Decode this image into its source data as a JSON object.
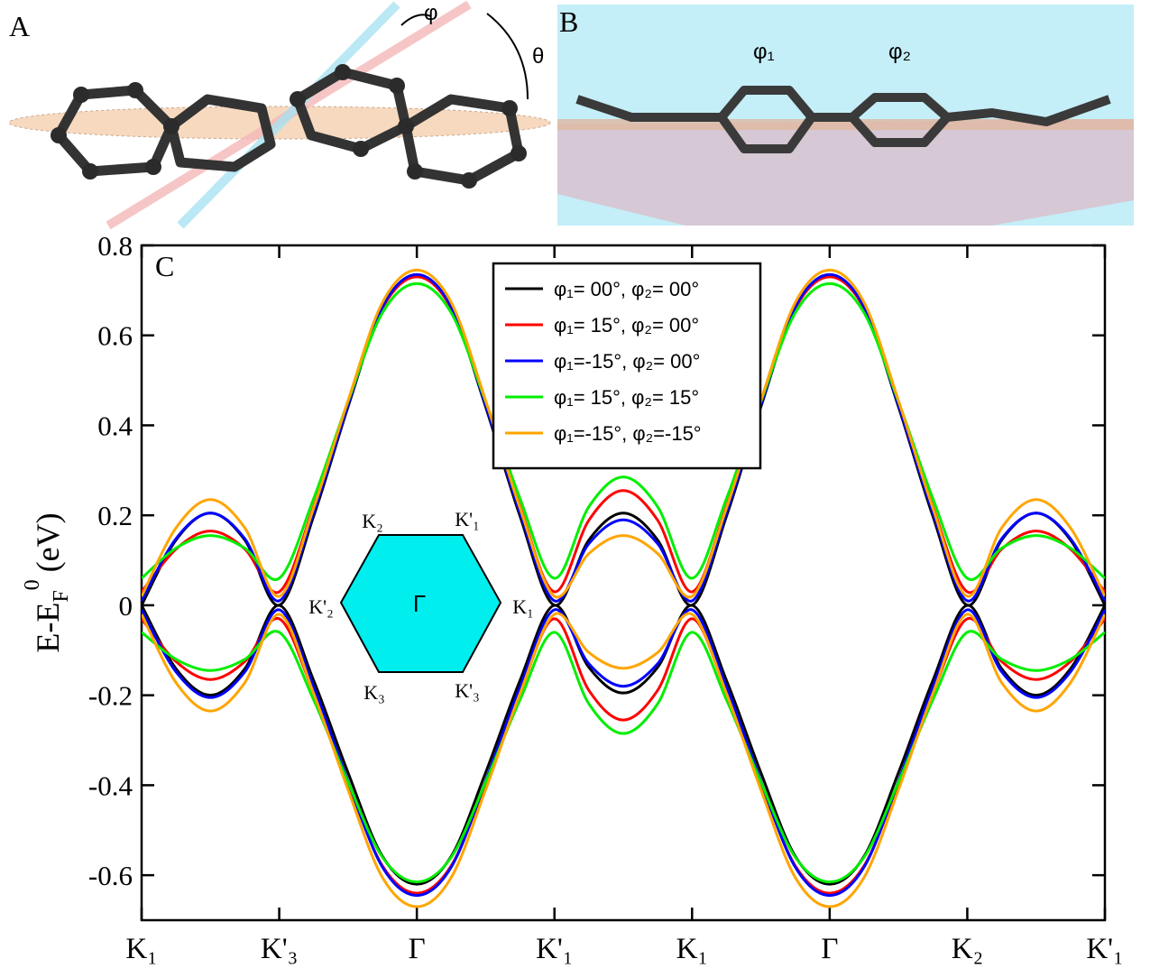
{
  "panels": {
    "a_label": "A",
    "phi": "φ",
    "theta": "θ",
    "b_label": "B",
    "phi1": "φ₁",
    "phi2": "φ₂"
  },
  "chart_data": {
    "type": "line",
    "panel_label": "C",
    "ylabel": {
      "main": "E-E",
      "sub": "F",
      "sup": "0",
      "unit": "(eV)"
    },
    "x": [
      0,
      0.25,
      0.5,
      0.75,
      1,
      1.25,
      1.5,
      1.75,
      2,
      2.25,
      2.5,
      2.75,
      3,
      3.25,
      3.5,
      3.75,
      4,
      4.25,
      4.5,
      4.75,
      5,
      5.25,
      5.5,
      5.75,
      6,
      6.25,
      6.5,
      6.75,
      7
    ],
    "xlim": [
      0,
      7
    ],
    "xticks": [
      {
        "value": 0,
        "label": "K₁"
      },
      {
        "value": 1,
        "label": "K'₃"
      },
      {
        "value": 2,
        "label": "Γ"
      },
      {
        "value": 3,
        "label": "K'₁"
      },
      {
        "value": 4,
        "label": "K₁"
      },
      {
        "value": 5,
        "label": "Γ"
      },
      {
        "value": 6,
        "label": "K₂"
      },
      {
        "value": 7,
        "label": "K'₁"
      }
    ],
    "ylim": [
      -0.7,
      0.8
    ],
    "yticks": [
      -0.6,
      -0.4,
      -0.2,
      0,
      0.2,
      0.4,
      0.6,
      0.8
    ],
    "series": [
      {
        "name": "φ₁= 00°, φ₂= 00°",
        "color": "#000000",
        "values": [
          0,
          0.145,
          0.205,
          0.145,
          0,
          0.198,
          0.441,
          0.662,
          0.735,
          0.662,
          0.441,
          0.198,
          0,
          0.145,
          0.205,
          0.145,
          0,
          0.198,
          0.441,
          0.662,
          0.735,
          0.662,
          0.441,
          0.198,
          0,
          0.145,
          0.205,
          0.145,
          0
        ],
        "lower_values": [
          0,
          -0.141,
          -0.2,
          -0.141,
          0,
          -0.167,
          -0.372,
          -0.558,
          -0.62,
          -0.558,
          -0.372,
          -0.167,
          0,
          -0.138,
          -0.195,
          -0.138,
          0,
          -0.167,
          -0.372,
          -0.558,
          -0.62,
          -0.558,
          -0.372,
          -0.167,
          0,
          -0.141,
          -0.2,
          -0.141,
          0
        ]
      },
      {
        "name": "φ₁= 15°, φ₂= 00°",
        "color": "#ff0000",
        "values": [
          0.03,
          0.125,
          0.165,
          0.125,
          0.03,
          0.219,
          0.45,
          0.66,
          0.73,
          0.66,
          0.45,
          0.219,
          0.03,
          0.189,
          0.255,
          0.189,
          0.03,
          0.219,
          0.45,
          0.66,
          0.73,
          0.66,
          0.45,
          0.219,
          0.03,
          0.125,
          0.165,
          0.125,
          0.03
        ],
        "lower_values": [
          -0.03,
          -0.125,
          -0.165,
          -0.125,
          -0.03,
          -0.195,
          -0.396,
          -0.579,
          -0.64,
          -0.579,
          -0.396,
          -0.195,
          -0.03,
          -0.189,
          -0.255,
          -0.189,
          -0.03,
          -0.195,
          -0.396,
          -0.579,
          -0.64,
          -0.579,
          -0.396,
          -0.195,
          -0.03,
          -0.125,
          -0.165,
          -0.125,
          -0.03
        ]
      },
      {
        "name": "φ₁=-15°, φ₂= 00°",
        "color": "#0000ff",
        "values": [
          0.01,
          0.148,
          0.205,
          0.148,
          0.01,
          0.206,
          0.445,
          0.663,
          0.735,
          0.663,
          0.445,
          0.206,
          0.01,
          0.137,
          0.19,
          0.137,
          0.01,
          0.206,
          0.445,
          0.663,
          0.735,
          0.663,
          0.445,
          0.206,
          0.01,
          0.148,
          0.205,
          0.148,
          0.01
        ],
        "lower_values": [
          -0.01,
          -0.148,
          -0.205,
          -0.148,
          -0.01,
          -0.181,
          -0.391,
          -0.582,
          -0.645,
          -0.582,
          -0.391,
          -0.181,
          -0.01,
          -0.13,
          -0.18,
          -0.13,
          -0.01,
          -0.181,
          -0.391,
          -0.582,
          -0.645,
          -0.582,
          -0.391,
          -0.181,
          -0.01,
          -0.148,
          -0.205,
          -0.148,
          -0.01
        ]
      },
      {
        "name": "φ₁= 15°, φ₂= 15°",
        "color": "#00ee00",
        "values": [
          0.06,
          0.127,
          0.155,
          0.127,
          0.06,
          0.237,
          0.453,
          0.65,
          0.715,
          0.65,
          0.453,
          0.237,
          0.06,
          0.219,
          0.285,
          0.219,
          0.06,
          0.237,
          0.453,
          0.65,
          0.715,
          0.65,
          0.453,
          0.237,
          0.06,
          0.127,
          0.155,
          0.127,
          0.06
        ],
        "lower_values": [
          -0.06,
          -0.12,
          -0.145,
          -0.12,
          -0.06,
          -0.21,
          -0.393,
          -0.56,
          -0.615,
          -0.56,
          -0.393,
          -0.21,
          -0.06,
          -0.219,
          -0.285,
          -0.219,
          -0.06,
          -0.21,
          -0.393,
          -0.56,
          -0.615,
          -0.56,
          -0.393,
          -0.21,
          -0.06,
          -0.12,
          -0.145,
          -0.12,
          -0.06
        ]
      },
      {
        "name": "φ₁=-15°, φ₂=-15°",
        "color": "#ffa500",
        "values": [
          0.02,
          0.172,
          0.235,
          0.172,
          0.02,
          0.216,
          0.455,
          0.673,
          0.745,
          0.673,
          0.455,
          0.216,
          0.02,
          0.115,
          0.155,
          0.115,
          0.02,
          0.216,
          0.455,
          0.673,
          0.745,
          0.673,
          0.455,
          0.216,
          0.02,
          0.172,
          0.235,
          0.172,
          0.02
        ],
        "lower_values": [
          -0.02,
          -0.172,
          -0.235,
          -0.172,
          -0.02,
          -0.196,
          -0.41,
          -0.605,
          -0.67,
          -0.605,
          -0.41,
          -0.196,
          -0.02,
          -0.105,
          -0.14,
          -0.105,
          -0.02,
          -0.196,
          -0.41,
          -0.605,
          -0.67,
          -0.605,
          -0.41,
          -0.196,
          -0.02,
          -0.172,
          -0.235,
          -0.172,
          -0.02
        ]
      }
    ],
    "inset": {
      "labels": [
        "K₂",
        "K'₁",
        "K'₂",
        "Γ",
        "K₁",
        "K₃",
        "K'₃"
      ]
    }
  }
}
